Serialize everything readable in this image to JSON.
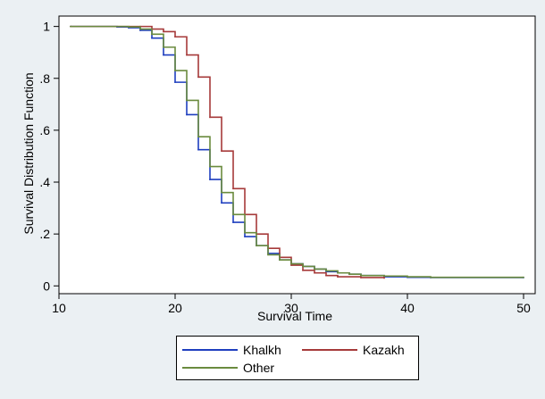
{
  "chart_data": {
    "type": "line",
    "title": "",
    "xlabel": "Survival Time",
    "ylabel": "Survival Distribution Function",
    "xlim": [
      10,
      51
    ],
    "ylim": [
      -0.03,
      1.04
    ],
    "x_ticks": [
      10,
      20,
      30,
      40,
      50
    ],
    "x_tick_labels": [
      "10",
      "20",
      "30",
      "40",
      "50"
    ],
    "y_ticks": [
      0,
      0.2,
      0.4,
      0.6,
      0.8,
      1
    ],
    "y_tick_labels": [
      "0",
      ".2",
      ".4",
      ".6",
      ".8",
      "1"
    ],
    "grid": false,
    "legend_position": "bottom",
    "series": [
      {
        "name": "Khalkh",
        "color": "#1f3fbf",
        "x": [
          11,
          15,
          16,
          17,
          18,
          19,
          20,
          21,
          22,
          23,
          24,
          25,
          26,
          27,
          28,
          29,
          30,
          31,
          32,
          33,
          34,
          35,
          36,
          38,
          40,
          42,
          50
        ],
        "y": [
          1.0,
          0.998,
          0.995,
          0.985,
          0.955,
          0.89,
          0.785,
          0.66,
          0.525,
          0.41,
          0.32,
          0.245,
          0.19,
          0.155,
          0.125,
          0.1,
          0.085,
          0.075,
          0.065,
          0.055,
          0.05,
          0.045,
          0.04,
          0.035,
          0.033,
          0.032,
          0.032
        ]
      },
      {
        "name": "Kazakh",
        "color": "#a63a3a",
        "x": [
          11,
          17,
          18,
          19,
          20,
          21,
          22,
          23,
          24,
          25,
          26,
          27,
          28,
          29,
          30,
          31,
          32,
          33,
          34,
          36,
          38
        ],
        "y": [
          1.0,
          1.0,
          0.99,
          0.98,
          0.96,
          0.89,
          0.805,
          0.65,
          0.52,
          0.375,
          0.275,
          0.2,
          0.145,
          0.11,
          0.08,
          0.06,
          0.05,
          0.04,
          0.035,
          0.032,
          0.03
        ]
      },
      {
        "name": "Other",
        "color": "#6a8b3e",
        "x": [
          11,
          16,
          17,
          18,
          19,
          20,
          21,
          22,
          23,
          24,
          25,
          26,
          27,
          28,
          29,
          30,
          31,
          32,
          33,
          34,
          35,
          36,
          38,
          40,
          42,
          50
        ],
        "y": [
          1.0,
          0.998,
          0.99,
          0.97,
          0.92,
          0.83,
          0.715,
          0.575,
          0.46,
          0.36,
          0.275,
          0.205,
          0.155,
          0.12,
          0.1,
          0.085,
          0.075,
          0.065,
          0.058,
          0.05,
          0.045,
          0.04,
          0.038,
          0.035,
          0.033,
          0.033
        ]
      }
    ]
  }
}
